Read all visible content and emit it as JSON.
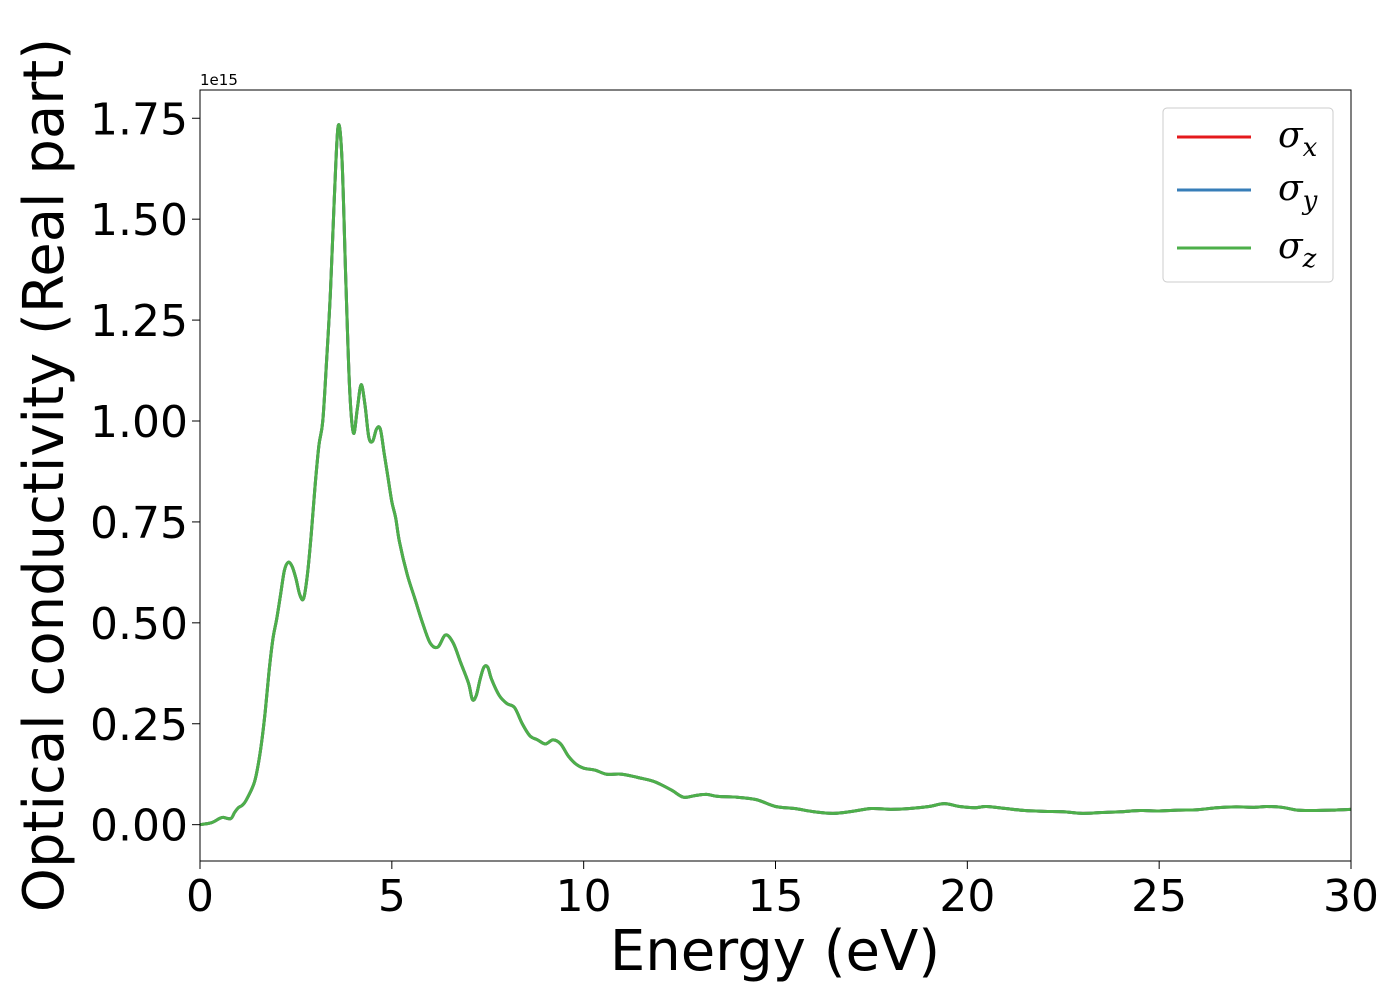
{
  "chart_data": {
    "type": "line",
    "title": "",
    "xlabel": "Energy (eV)",
    "ylabel": "Optical conductivity (Real part)",
    "y_offset_label": "1e15",
    "xlim": [
      0,
      30
    ],
    "ylim": [
      -0.09,
      1.82
    ],
    "y_multiplier": 1000000000000000.0,
    "xticks": [
      0,
      5,
      10,
      15,
      20,
      25,
      30
    ],
    "xtick_labels": [
      "0",
      "5",
      "10",
      "15",
      "20",
      "25",
      "30"
    ],
    "yticks": [
      0.0,
      0.25,
      0.5,
      0.75,
      1.0,
      1.25,
      1.5,
      1.75
    ],
    "ytick_labels": [
      "0.00",
      "0.25",
      "0.50",
      "0.75",
      "1.00",
      "1.25",
      "1.50",
      "1.75"
    ],
    "grid": false,
    "legend_position": "top-right",
    "series": [
      {
        "name": "σ",
        "subscript": "x",
        "color": "#e41a1c",
        "x": [
          0,
          0.3,
          0.5,
          0.6,
          0.8,
          0.9,
          1.0,
          1.1,
          1.2,
          1.4,
          1.5,
          1.6,
          1.7,
          1.8,
          1.9,
          2.0,
          2.1,
          2.2,
          2.3,
          2.4,
          2.5,
          2.6,
          2.7,
          2.8,
          2.9,
          3.0,
          3.1,
          3.2,
          3.3,
          3.4,
          3.5,
          3.6,
          3.7,
          3.8,
          3.9,
          4.0,
          4.1,
          4.2,
          4.3,
          4.4,
          4.5,
          4.6,
          4.7,
          4.8,
          4.9,
          5.0,
          5.1,
          5.2,
          5.4,
          5.6,
          5.8,
          6.0,
          6.2,
          6.4,
          6.6,
          6.8,
          7.0,
          7.1,
          7.2,
          7.3,
          7.4,
          7.5,
          7.6,
          7.8,
          8.0,
          8.2,
          8.4,
          8.6,
          8.8,
          9.0,
          9.2,
          9.4,
          9.6,
          9.8,
          10.0,
          10.3,
          10.6,
          11.0,
          11.5,
          11.8,
          12.0,
          12.3,
          12.6,
          12.9,
          13.2,
          13.5,
          14.0,
          14.5,
          15.0,
          15.5,
          16.0,
          16.5,
          17.0,
          17.5,
          18.0,
          18.5,
          19.0,
          19.4,
          19.8,
          20.2,
          20.5,
          21.0,
          21.5,
          22.0,
          22.5,
          23.0,
          23.5,
          24.0,
          24.5,
          25.0,
          25.5,
          26.0,
          26.5,
          27.0,
          27.5,
          27.8,
          28.2,
          28.6,
          29.0,
          29.5,
          30.0
        ],
        "values": [
          0.0,
          0.005,
          0.015,
          0.018,
          0.015,
          0.03,
          0.042,
          0.048,
          0.06,
          0.1,
          0.14,
          0.2,
          0.28,
          0.38,
          0.46,
          0.51,
          0.57,
          0.63,
          0.65,
          0.64,
          0.61,
          0.57,
          0.56,
          0.62,
          0.72,
          0.84,
          0.94,
          1.0,
          1.15,
          1.32,
          1.55,
          1.73,
          1.65,
          1.35,
          1.08,
          0.97,
          1.03,
          1.09,
          1.04,
          0.96,
          0.95,
          0.98,
          0.98,
          0.92,
          0.86,
          0.8,
          0.76,
          0.7,
          0.62,
          0.56,
          0.5,
          0.45,
          0.44,
          0.47,
          0.45,
          0.4,
          0.35,
          0.31,
          0.32,
          0.36,
          0.39,
          0.39,
          0.36,
          0.32,
          0.3,
          0.29,
          0.25,
          0.22,
          0.21,
          0.2,
          0.21,
          0.2,
          0.17,
          0.15,
          0.14,
          0.135,
          0.125,
          0.125,
          0.115,
          0.108,
          0.1,
          0.085,
          0.068,
          0.072,
          0.075,
          0.07,
          0.068,
          0.062,
          0.045,
          0.04,
          0.032,
          0.028,
          0.033,
          0.04,
          0.038,
          0.04,
          0.045,
          0.052,
          0.045,
          0.042,
          0.045,
          0.04,
          0.035,
          0.033,
          0.032,
          0.028,
          0.03,
          0.032,
          0.035,
          0.034,
          0.036,
          0.037,
          0.042,
          0.044,
          0.043,
          0.045,
          0.043,
          0.036,
          0.035,
          0.036,
          0.038
        ]
      },
      {
        "name": "σ",
        "subscript": "y",
        "color": "#377eb8",
        "x": [
          0,
          0.3,
          0.5,
          0.6,
          0.8,
          0.9,
          1.0,
          1.1,
          1.2,
          1.4,
          1.5,
          1.6,
          1.7,
          1.8,
          1.9,
          2.0,
          2.1,
          2.2,
          2.3,
          2.4,
          2.5,
          2.6,
          2.7,
          2.8,
          2.9,
          3.0,
          3.1,
          3.2,
          3.3,
          3.4,
          3.5,
          3.6,
          3.7,
          3.8,
          3.9,
          4.0,
          4.1,
          4.2,
          4.3,
          4.4,
          4.5,
          4.6,
          4.7,
          4.8,
          4.9,
          5.0,
          5.1,
          5.2,
          5.4,
          5.6,
          5.8,
          6.0,
          6.2,
          6.4,
          6.6,
          6.8,
          7.0,
          7.1,
          7.2,
          7.3,
          7.4,
          7.5,
          7.6,
          7.8,
          8.0,
          8.2,
          8.4,
          8.6,
          8.8,
          9.0,
          9.2,
          9.4,
          9.6,
          9.8,
          10.0,
          10.3,
          10.6,
          11.0,
          11.5,
          11.8,
          12.0,
          12.3,
          12.6,
          12.9,
          13.2,
          13.5,
          14.0,
          14.5,
          15.0,
          15.5,
          16.0,
          16.5,
          17.0,
          17.5,
          18.0,
          18.5,
          19.0,
          19.4,
          19.8,
          20.2,
          20.5,
          21.0,
          21.5,
          22.0,
          22.5,
          23.0,
          23.5,
          24.0,
          24.5,
          25.0,
          25.5,
          26.0,
          26.5,
          27.0,
          27.5,
          27.8,
          28.2,
          28.6,
          29.0,
          29.5,
          30.0
        ],
        "values": [
          0.0,
          0.005,
          0.015,
          0.018,
          0.015,
          0.03,
          0.042,
          0.048,
          0.06,
          0.1,
          0.14,
          0.2,
          0.28,
          0.38,
          0.46,
          0.51,
          0.57,
          0.63,
          0.65,
          0.64,
          0.61,
          0.57,
          0.56,
          0.62,
          0.72,
          0.84,
          0.94,
          1.0,
          1.15,
          1.32,
          1.55,
          1.73,
          1.65,
          1.35,
          1.08,
          0.97,
          1.03,
          1.09,
          1.04,
          0.96,
          0.95,
          0.98,
          0.98,
          0.92,
          0.86,
          0.8,
          0.76,
          0.7,
          0.62,
          0.56,
          0.5,
          0.45,
          0.44,
          0.47,
          0.45,
          0.4,
          0.35,
          0.31,
          0.32,
          0.36,
          0.39,
          0.39,
          0.36,
          0.32,
          0.3,
          0.29,
          0.25,
          0.22,
          0.21,
          0.2,
          0.21,
          0.2,
          0.17,
          0.15,
          0.14,
          0.135,
          0.125,
          0.125,
          0.115,
          0.108,
          0.1,
          0.085,
          0.068,
          0.072,
          0.075,
          0.07,
          0.068,
          0.062,
          0.045,
          0.04,
          0.032,
          0.028,
          0.033,
          0.04,
          0.038,
          0.04,
          0.045,
          0.052,
          0.045,
          0.042,
          0.045,
          0.04,
          0.035,
          0.033,
          0.032,
          0.028,
          0.03,
          0.032,
          0.035,
          0.034,
          0.036,
          0.037,
          0.042,
          0.044,
          0.043,
          0.045,
          0.043,
          0.036,
          0.035,
          0.036,
          0.038
        ]
      },
      {
        "name": "σ",
        "subscript": "z",
        "color": "#4daf4a",
        "x": [
          0,
          0.3,
          0.5,
          0.6,
          0.8,
          0.9,
          1.0,
          1.1,
          1.2,
          1.4,
          1.5,
          1.6,
          1.7,
          1.8,
          1.9,
          2.0,
          2.1,
          2.2,
          2.3,
          2.4,
          2.5,
          2.6,
          2.7,
          2.8,
          2.9,
          3.0,
          3.1,
          3.2,
          3.3,
          3.4,
          3.5,
          3.6,
          3.7,
          3.8,
          3.9,
          4.0,
          4.1,
          4.2,
          4.3,
          4.4,
          4.5,
          4.6,
          4.7,
          4.8,
          4.9,
          5.0,
          5.1,
          5.2,
          5.4,
          5.6,
          5.8,
          6.0,
          6.2,
          6.4,
          6.6,
          6.8,
          7.0,
          7.1,
          7.2,
          7.3,
          7.4,
          7.5,
          7.6,
          7.8,
          8.0,
          8.2,
          8.4,
          8.6,
          8.8,
          9.0,
          9.2,
          9.4,
          9.6,
          9.8,
          10.0,
          10.3,
          10.6,
          11.0,
          11.5,
          11.8,
          12.0,
          12.3,
          12.6,
          12.9,
          13.2,
          13.5,
          14.0,
          14.5,
          15.0,
          15.5,
          16.0,
          16.5,
          17.0,
          17.5,
          18.0,
          18.5,
          19.0,
          19.4,
          19.8,
          20.2,
          20.5,
          21.0,
          21.5,
          22.0,
          22.5,
          23.0,
          23.5,
          24.0,
          24.5,
          25.0,
          25.5,
          26.0,
          26.5,
          27.0,
          27.5,
          27.8,
          28.2,
          28.6,
          29.0,
          29.5,
          30.0
        ],
        "values": [
          0.0,
          0.005,
          0.015,
          0.018,
          0.015,
          0.03,
          0.042,
          0.048,
          0.06,
          0.1,
          0.14,
          0.2,
          0.28,
          0.38,
          0.46,
          0.51,
          0.57,
          0.63,
          0.65,
          0.64,
          0.61,
          0.57,
          0.56,
          0.62,
          0.72,
          0.84,
          0.94,
          1.0,
          1.15,
          1.32,
          1.55,
          1.73,
          1.65,
          1.35,
          1.08,
          0.97,
          1.03,
          1.09,
          1.04,
          0.96,
          0.95,
          0.98,
          0.98,
          0.92,
          0.86,
          0.8,
          0.76,
          0.7,
          0.62,
          0.56,
          0.5,
          0.45,
          0.44,
          0.47,
          0.45,
          0.4,
          0.35,
          0.31,
          0.32,
          0.36,
          0.39,
          0.39,
          0.36,
          0.32,
          0.3,
          0.29,
          0.25,
          0.22,
          0.21,
          0.2,
          0.21,
          0.2,
          0.17,
          0.15,
          0.14,
          0.135,
          0.125,
          0.125,
          0.115,
          0.108,
          0.1,
          0.085,
          0.068,
          0.072,
          0.075,
          0.07,
          0.068,
          0.062,
          0.045,
          0.04,
          0.032,
          0.028,
          0.033,
          0.04,
          0.038,
          0.04,
          0.045,
          0.052,
          0.045,
          0.042,
          0.045,
          0.04,
          0.035,
          0.033,
          0.032,
          0.028,
          0.03,
          0.032,
          0.035,
          0.034,
          0.036,
          0.037,
          0.042,
          0.044,
          0.043,
          0.045,
          0.043,
          0.036,
          0.035,
          0.036,
          0.038
        ]
      }
    ]
  }
}
